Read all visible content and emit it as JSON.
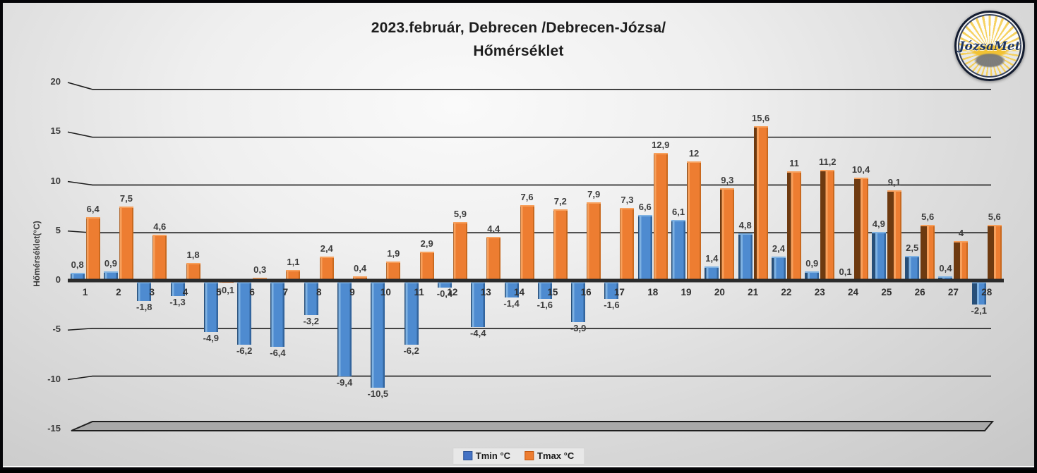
{
  "title": {
    "line1": "2023.február, Debrecen /Debrecen-Józsa/",
    "line2": "Hőmérséklet"
  },
  "logo": {
    "text": "JózsaMet"
  },
  "axis": {
    "y_title": "Hőmérséklet(°C)",
    "ticks": [
      20,
      15,
      10,
      5,
      0,
      -5,
      -10,
      -15
    ]
  },
  "legend": {
    "tmin_label": "Tmin °C",
    "tmax_label": "Tmax °C"
  },
  "colors": {
    "tmin_main": "#4E8BD0",
    "tmin_dark": "#274F79",
    "tmin_light": "#7FB2E2",
    "tmin_legend": "#4472C4",
    "tmax_main": "#ED7D31",
    "tmax_dark": "#6E3A10",
    "tmax_light": "#F7A05C",
    "tmax_legend": "#ED7D31",
    "gridline": "#1c1c1c",
    "axis_line": "#2b2b2b",
    "floor_fill": "#a9a9a9"
  },
  "chart_data": {
    "type": "bar",
    "title": "2023.február, Debrecen /Debrecen-Józsa/ Hőmérséklet",
    "ylabel": "Hőmérséklet(°C)",
    "ylim": [
      -15,
      20
    ],
    "grid": true,
    "legend_position": "bottom",
    "categories": [
      1,
      2,
      3,
      4,
      5,
      6,
      7,
      8,
      9,
      10,
      11,
      12,
      13,
      14,
      15,
      16,
      17,
      18,
      19,
      20,
      21,
      22,
      23,
      24,
      25,
      26,
      27,
      28
    ],
    "series": [
      {
        "name": "Tmin °C",
        "values": [
          0.8,
          0.9,
          -1.8,
          -1.3,
          -4.9,
          -6.2,
          -6.4,
          -3.2,
          -9.4,
          -10.5,
          -6.2,
          -0.4,
          -4.4,
          -1.4,
          -1.6,
          -3.9,
          -1.6,
          6.6,
          6.1,
          1.4,
          4.8,
          2.4,
          0.9,
          0.1,
          4.9,
          2.5,
          0.4,
          -2.1
        ],
        "labels": [
          "0,8",
          "0,9",
          "-1,8",
          "-1,3",
          "-4,9",
          "-6,2",
          "-6,4",
          "-3,2",
          "-9,4",
          "-10,5",
          "-6,2",
          "-0,4",
          "-4,4",
          "-1,4",
          "-1,6",
          "-3,9",
          "-1,6",
          "6,6",
          "6,1",
          "1,4",
          "4,8",
          "2,4",
          "0,9",
          "0,1",
          "4,9",
          "2,5",
          "0,4",
          "-2,1"
        ]
      },
      {
        "name": "Tmax °C",
        "values": [
          6.4,
          7.5,
          4.6,
          1.8,
          -0.1,
          0.3,
          1.1,
          2.4,
          0.4,
          1.9,
          2.9,
          5.9,
          4.4,
          7.6,
          7.2,
          7.9,
          7.3,
          12.9,
          12,
          9.3,
          15.6,
          11,
          11.2,
          10.4,
          9.1,
          5.6,
          4,
          5.6
        ],
        "labels": [
          "6,4",
          "7,5",
          "4,6",
          "1,8",
          "-0,1",
          "0,3",
          "1,1",
          "2,4",
          "0,4",
          "1,9",
          "2,9",
          "5,9",
          "4,4",
          "7,6",
          "7,2",
          "7,9",
          "7,3",
          "12,9",
          "12",
          "9,3",
          "15,6",
          "11",
          "11,2",
          "10,4",
          "9,1",
          "5,6",
          "4",
          "5,6"
        ]
      }
    ]
  }
}
